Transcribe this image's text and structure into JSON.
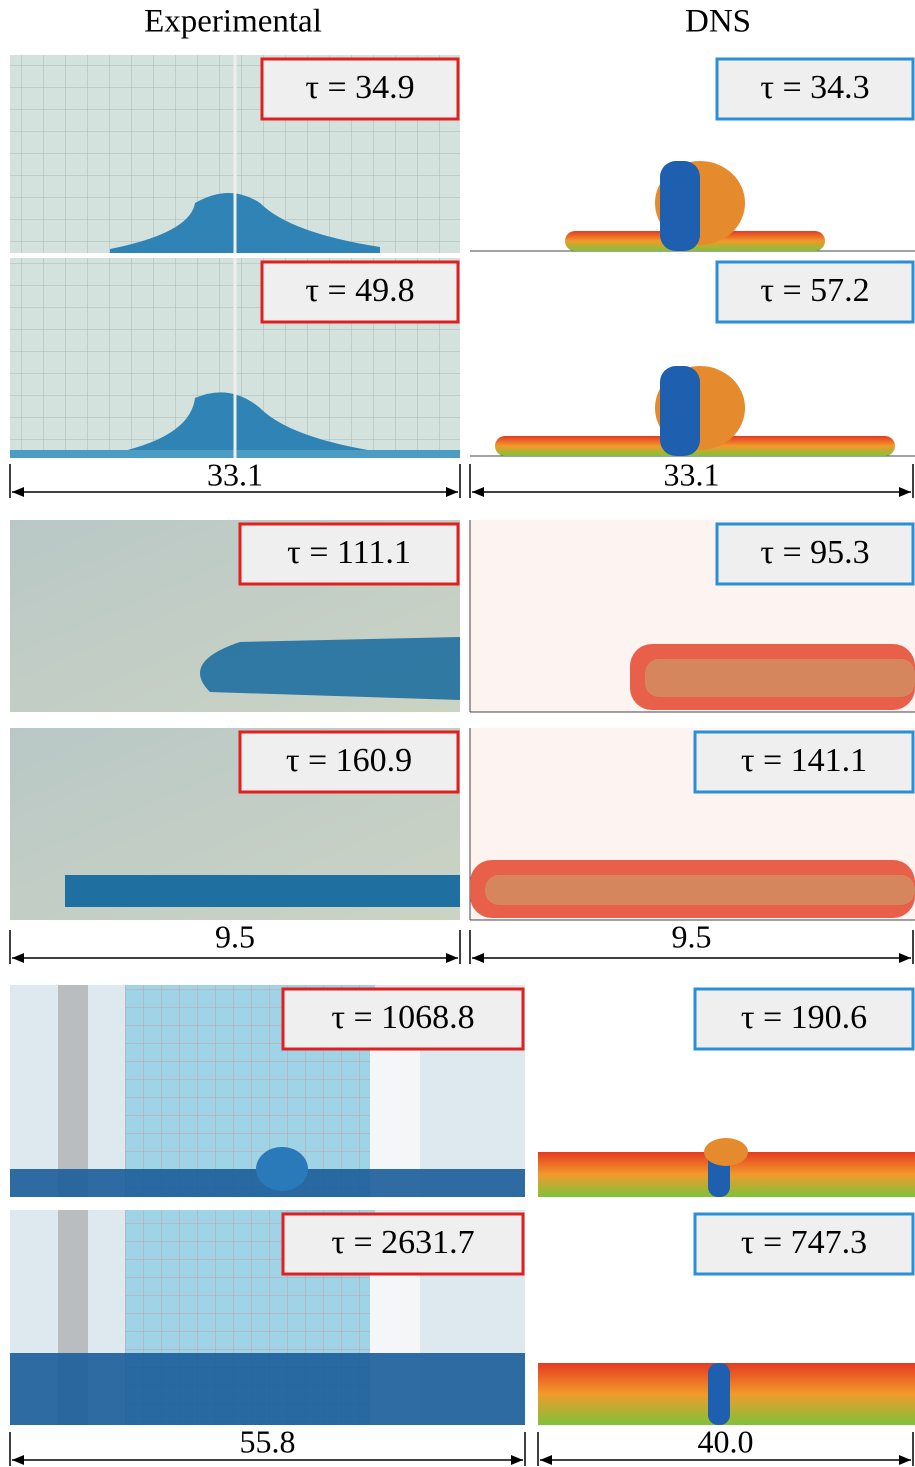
{
  "headers": {
    "experimental": "Experimental",
    "dns": "DNS"
  },
  "sections": [
    {
      "rows": [
        {
          "experimental": "τ = 34.9",
          "dns": "τ = 34.3"
        },
        {
          "experimental": "τ = 49.8",
          "dns": "τ = 57.2"
        }
      ],
      "dimensions": {
        "experimental": "33.1",
        "dns": "33.1"
      }
    },
    {
      "rows": [
        {
          "experimental": "τ = 111.1",
          "dns": "τ = 95.3"
        },
        {
          "experimental": "τ = 160.9",
          "dns": "τ = 141.1"
        }
      ],
      "dimensions": {
        "experimental": "9.5",
        "dns": "9.5"
      }
    },
    {
      "rows": [
        {
          "experimental": "τ = 1068.8",
          "dns": "τ = 190.6"
        },
        {
          "experimental": "τ = 2631.7",
          "dns": "τ = 747.3"
        }
      ],
      "dimensions": {
        "experimental": "55.8",
        "dns": "40.0"
      }
    }
  ]
}
